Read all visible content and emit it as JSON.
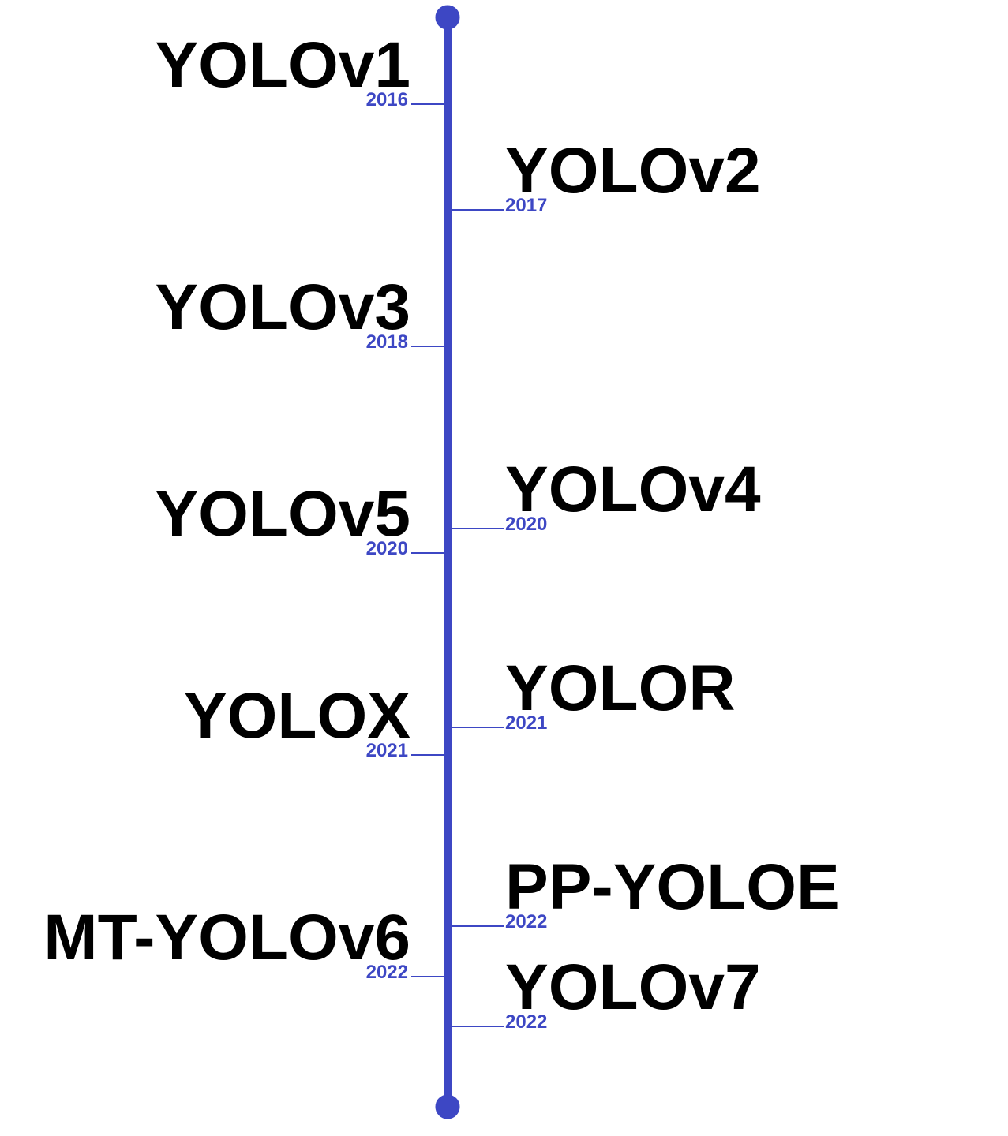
{
  "accent_color": "#3D47C4",
  "text_color": "#000000",
  "events": [
    {
      "name": "YOLOv1",
      "year": "2016",
      "side": "left"
    },
    {
      "name": "YOLOv2",
      "year": "2017",
      "side": "right"
    },
    {
      "name": "YOLOv3",
      "year": "2018",
      "side": "left"
    },
    {
      "name": "YOLOv4",
      "year": "2020",
      "side": "right"
    },
    {
      "name": "YOLOv5",
      "year": "2020",
      "side": "left"
    },
    {
      "name": "YOLOR",
      "year": "2021",
      "side": "right"
    },
    {
      "name": "YOLOX",
      "year": "2021",
      "side": "left"
    },
    {
      "name": "PP-YOLOE",
      "year": "2022",
      "side": "right"
    },
    {
      "name": "MT-YOLOv6",
      "year": "2022",
      "side": "left"
    },
    {
      "name": "YOLOv7",
      "year": "2022",
      "side": "right"
    }
  ]
}
